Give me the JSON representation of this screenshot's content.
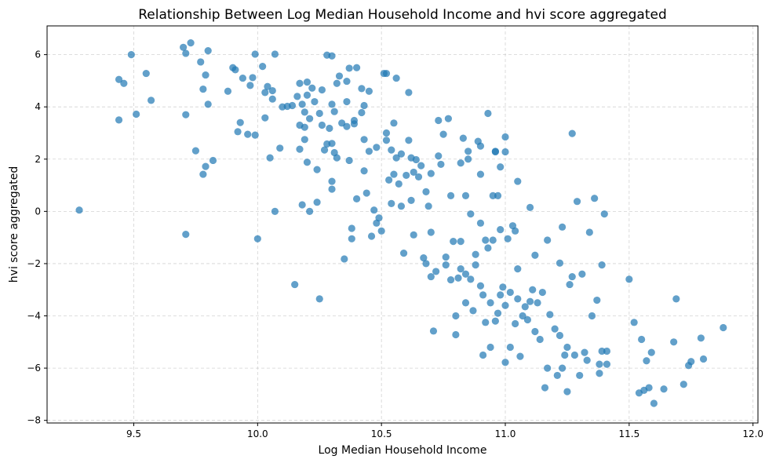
{
  "chart_data": {
    "type": "scatter",
    "title": "Relationship Between Log Median Household Income and hvi score aggregated",
    "xlabel": "Log Median Household Income",
    "ylabel": "hvi score aggregated",
    "xlim": [
      9.15,
      12.02
    ],
    "ylim": [
      -8.1,
      7.1
    ],
    "xticks": [
      9.5,
      10.0,
      10.5,
      11.0,
      11.5,
      12.0
    ],
    "xtick_labels": [
      "9.5",
      "10.0",
      "10.5",
      "11.0",
      "11.5",
      "12.0"
    ],
    "yticks": [
      -8,
      -6,
      -4,
      -2,
      0,
      2,
      4,
      6
    ],
    "ytick_labels": [
      "−8",
      "−6",
      "−4",
      "−2",
      "0",
      "2",
      "4",
      "6"
    ],
    "grid": true,
    "color": "#1f77b4",
    "points": [
      [
        9.28,
        0.05
      ],
      [
        9.44,
        5.05
      ],
      [
        9.44,
        3.5
      ],
      [
        9.46,
        4.9
      ],
      [
        9.49,
        6.0
      ],
      [
        9.51,
        3.72
      ],
      [
        9.55,
        5.28
      ],
      [
        9.57,
        4.25
      ],
      [
        9.7,
        6.28
      ],
      [
        9.71,
        6.05
      ],
      [
        9.71,
        3.7
      ],
      [
        9.71,
        -0.88
      ],
      [
        9.73,
        6.45
      ],
      [
        9.75,
        2.32
      ],
      [
        9.77,
        5.72
      ],
      [
        9.78,
        4.68
      ],
      [
        9.79,
        5.22
      ],
      [
        9.79,
        1.72
      ],
      [
        9.8,
        6.15
      ],
      [
        9.8,
        4.1
      ],
      [
        9.78,
        1.42
      ],
      [
        9.82,
        1.95
      ],
      [
        9.88,
        4.6
      ],
      [
        9.9,
        5.5
      ],
      [
        9.91,
        5.42
      ],
      [
        9.92,
        3.05
      ],
      [
        9.93,
        3.4
      ],
      [
        9.94,
        5.1
      ],
      [
        9.96,
        2.95
      ],
      [
        9.97,
        4.82
      ],
      [
        9.98,
        5.12
      ],
      [
        9.99,
        6.02
      ],
      [
        9.99,
        2.92
      ],
      [
        10.0,
        -1.05
      ],
      [
        10.02,
        5.55
      ],
      [
        10.03,
        4.55
      ],
      [
        10.03,
        3.58
      ],
      [
        10.04,
        4.78
      ],
      [
        10.05,
        2.05
      ],
      [
        10.06,
        4.62
      ],
      [
        10.06,
        4.3
      ],
      [
        10.07,
        6.02
      ],
      [
        10.07,
        0.0
      ],
      [
        10.09,
        2.42
      ],
      [
        10.12,
        4.02
      ],
      [
        10.14,
        4.05
      ],
      [
        10.15,
        -2.8
      ],
      [
        10.16,
        4.4
      ],
      [
        10.17,
        3.3
      ],
      [
        10.17,
        2.38
      ],
      [
        10.17,
        4.9
      ],
      [
        10.18,
        0.25
      ],
      [
        10.18,
        4.1
      ],
      [
        10.19,
        3.8
      ],
      [
        10.19,
        3.22
      ],
      [
        10.19,
        2.75
      ],
      [
        10.2,
        1.88
      ],
      [
        10.2,
        4.95
      ],
      [
        10.2,
        4.45
      ],
      [
        10.21,
        3.55
      ],
      [
        10.21,
        0.0
      ],
      [
        10.22,
        4.72
      ],
      [
        10.23,
        4.2
      ],
      [
        10.24,
        1.6
      ],
      [
        10.24,
        0.35
      ],
      [
        10.25,
        -3.35
      ],
      [
        10.25,
        3.75
      ],
      [
        10.26,
        4.65
      ],
      [
        10.26,
        3.3
      ],
      [
        10.27,
        2.35
      ],
      [
        10.28,
        2.58
      ],
      [
        10.28,
        5.98
      ],
      [
        10.29,
        3.18
      ],
      [
        10.3,
        5.95
      ],
      [
        10.3,
        4.1
      ],
      [
        10.3,
        1.15
      ],
      [
        10.3,
        0.85
      ],
      [
        10.31,
        2.25
      ],
      [
        10.31,
        3.82
      ],
      [
        10.32,
        4.9
      ],
      [
        10.32,
        2.05
      ],
      [
        10.33,
        5.18
      ],
      [
        10.34,
        3.38
      ],
      [
        10.35,
        -1.82
      ],
      [
        10.36,
        4.98
      ],
      [
        10.36,
        3.25
      ],
      [
        10.37,
        5.48
      ],
      [
        10.37,
        1.95
      ],
      [
        10.38,
        -0.65
      ],
      [
        10.38,
        -1.05
      ],
      [
        10.39,
        3.48
      ],
      [
        10.39,
        3.35
      ],
      [
        10.4,
        5.5
      ],
      [
        10.4,
        0.48
      ],
      [
        10.42,
        3.78
      ],
      [
        10.42,
        4.7
      ],
      [
        10.43,
        4.05
      ],
      [
        10.43,
        1.55
      ],
      [
        10.43,
        2.75
      ],
      [
        10.44,
        0.7
      ],
      [
        10.45,
        4.6
      ],
      [
        10.45,
        2.3
      ],
      [
        10.46,
        -0.95
      ],
      [
        10.47,
        0.05
      ],
      [
        10.48,
        2.45
      ],
      [
        10.48,
        -0.45
      ],
      [
        10.49,
        -0.25
      ],
      [
        10.5,
        -0.75
      ],
      [
        10.51,
        5.28
      ],
      [
        10.52,
        5.28
      ],
      [
        10.52,
        2.72
      ],
      [
        10.53,
        1.2
      ],
      [
        10.54,
        2.35
      ],
      [
        10.54,
        0.3
      ],
      [
        10.55,
        3.38
      ],
      [
        10.55,
        1.42
      ],
      [
        10.56,
        5.1
      ],
      [
        10.56,
        2.05
      ],
      [
        10.57,
        1.05
      ],
      [
        10.58,
        2.2
      ],
      [
        10.58,
        0.2
      ],
      [
        10.59,
        -1.6
      ],
      [
        10.6,
        1.38
      ],
      [
        10.61,
        2.72
      ],
      [
        10.61,
        4.55
      ],
      [
        10.62,
        0.42
      ],
      [
        10.63,
        1.5
      ],
      [
        10.63,
        -0.9
      ],
      [
        10.64,
        1.98
      ],
      [
        10.65,
        1.32
      ],
      [
        10.66,
        1.75
      ],
      [
        10.67,
        -1.78
      ],
      [
        10.68,
        0.75
      ],
      [
        10.68,
        -2.0
      ],
      [
        10.69,
        0.2
      ],
      [
        10.7,
        -2.5
      ],
      [
        10.7,
        -0.8
      ],
      [
        10.71,
        -4.58
      ],
      [
        10.72,
        -2.3
      ],
      [
        10.73,
        2.12
      ],
      [
        10.73,
        3.48
      ],
      [
        10.74,
        1.8
      ],
      [
        10.75,
        2.95
      ],
      [
        10.76,
        -1.75
      ],
      [
        10.76,
        -2.05
      ],
      [
        10.77,
        3.55
      ],
      [
        10.78,
        0.6
      ],
      [
        10.78,
        -2.62
      ],
      [
        10.79,
        -1.15
      ],
      [
        10.8,
        -4.0
      ],
      [
        10.8,
        -4.72
      ],
      [
        10.81,
        -2.55
      ],
      [
        10.82,
        -1.15
      ],
      [
        10.82,
        -2.2
      ],
      [
        10.83,
        2.8
      ],
      [
        10.84,
        0.6
      ],
      [
        10.84,
        -3.5
      ],
      [
        10.85,
        2.3
      ],
      [
        10.85,
        2.0
      ],
      [
        10.86,
        -0.1
      ],
      [
        10.86,
        -2.6
      ],
      [
        10.87,
        -3.8
      ],
      [
        10.88,
        -1.65
      ],
      [
        10.88,
        -2.05
      ],
      [
        10.89,
        2.68
      ],
      [
        10.9,
        1.42
      ],
      [
        10.9,
        -0.45
      ],
      [
        10.9,
        -2.85
      ],
      [
        10.91,
        -5.5
      ],
      [
        10.91,
        -3.2
      ],
      [
        10.92,
        -4.25
      ],
      [
        10.92,
        -1.1
      ],
      [
        10.93,
        3.75
      ],
      [
        10.93,
        -1.4
      ],
      [
        10.94,
        -3.5
      ],
      [
        10.94,
        -5.2
      ],
      [
        10.95,
        0.6
      ],
      [
        10.95,
        -1.1
      ],
      [
        10.96,
        2.28
      ],
      [
        10.96,
        -4.2
      ],
      [
        10.97,
        0.6
      ],
      [
        10.97,
        -3.9
      ],
      [
        10.98,
        1.7
      ],
      [
        10.98,
        -0.7
      ],
      [
        10.99,
        -2.9
      ],
      [
        11.0,
        2.28
      ],
      [
        11.0,
        -3.6
      ],
      [
        11.0,
        -5.78
      ],
      [
        11.01,
        -1.05
      ],
      [
        11.02,
        -3.1
      ],
      [
        11.02,
        -5.2
      ],
      [
        11.03,
        -0.55
      ],
      [
        11.04,
        -0.75
      ],
      [
        11.04,
        -4.3
      ],
      [
        11.05,
        -2.2
      ],
      [
        11.05,
        -3.35
      ],
      [
        11.06,
        -5.55
      ],
      [
        11.07,
        -4.0
      ],
      [
        11.08,
        -3.65
      ],
      [
        11.09,
        -4.15
      ],
      [
        11.1,
        -3.45
      ],
      [
        11.1,
        0.15
      ],
      [
        11.11,
        -3.0
      ],
      [
        11.12,
        -1.68
      ],
      [
        11.13,
        -3.5
      ],
      [
        11.14,
        -4.9
      ],
      [
        11.15,
        -3.1
      ],
      [
        11.16,
        -6.75
      ],
      [
        11.17,
        -6.0
      ],
      [
        11.17,
        -1.1
      ],
      [
        11.18,
        -3.95
      ],
      [
        11.2,
        -4.5
      ],
      [
        11.21,
        -6.28
      ],
      [
        11.22,
        -1.98
      ],
      [
        11.23,
        -0.6
      ],
      [
        11.23,
        -6.0
      ],
      [
        11.24,
        -5.5
      ],
      [
        11.25,
        -6.9
      ],
      [
        11.25,
        -5.2
      ],
      [
        11.26,
        -2.8
      ],
      [
        11.27,
        2.98
      ],
      [
        11.27,
        -2.5
      ],
      [
        11.28,
        -5.5
      ],
      [
        11.29,
        0.38
      ],
      [
        11.3,
        -6.28
      ],
      [
        11.31,
        -2.4
      ],
      [
        11.32,
        -5.4
      ],
      [
        11.33,
        -5.7
      ],
      [
        11.34,
        -0.8
      ],
      [
        11.35,
        -4.0
      ],
      [
        11.36,
        0.5
      ],
      [
        11.37,
        -3.4
      ],
      [
        11.38,
        -6.2
      ],
      [
        11.38,
        -5.85
      ],
      [
        11.39,
        -5.35
      ],
      [
        11.39,
        -2.05
      ],
      [
        11.4,
        -0.1
      ],
      [
        11.41,
        -5.85
      ],
      [
        11.41,
        -5.35
      ],
      [
        11.5,
        -2.6
      ],
      [
        11.52,
        -4.25
      ],
      [
        11.54,
        -6.95
      ],
      [
        11.55,
        -4.9
      ],
      [
        11.56,
        -6.85
      ],
      [
        11.57,
        -5.72
      ],
      [
        11.58,
        -6.75
      ],
      [
        11.59,
        -5.4
      ],
      [
        11.6,
        -7.35
      ],
      [
        11.64,
        -6.8
      ],
      [
        11.68,
        -5.0
      ],
      [
        11.69,
        -3.35
      ],
      [
        11.72,
        -6.62
      ],
      [
        11.74,
        -5.9
      ],
      [
        11.75,
        -5.75
      ],
      [
        11.79,
        -4.85
      ],
      [
        11.8,
        -5.65
      ],
      [
        11.88,
        -4.45
      ],
      [
        10.3,
        2.6
      ],
      [
        10.1,
        4.0
      ],
      [
        10.36,
        4.2
      ],
      [
        10.52,
        3.0
      ],
      [
        10.62,
        2.05
      ],
      [
        10.7,
        1.45
      ],
      [
        10.82,
        1.85
      ],
      [
        10.9,
        2.5
      ],
      [
        10.96,
        2.3
      ],
      [
        11.0,
        2.85
      ],
      [
        11.05,
        1.15
      ],
      [
        11.22,
        -4.75
      ],
      [
        11.12,
        -4.6
      ],
      [
        10.98,
        -3.2
      ],
      [
        10.84,
        -2.4
      ]
    ]
  }
}
